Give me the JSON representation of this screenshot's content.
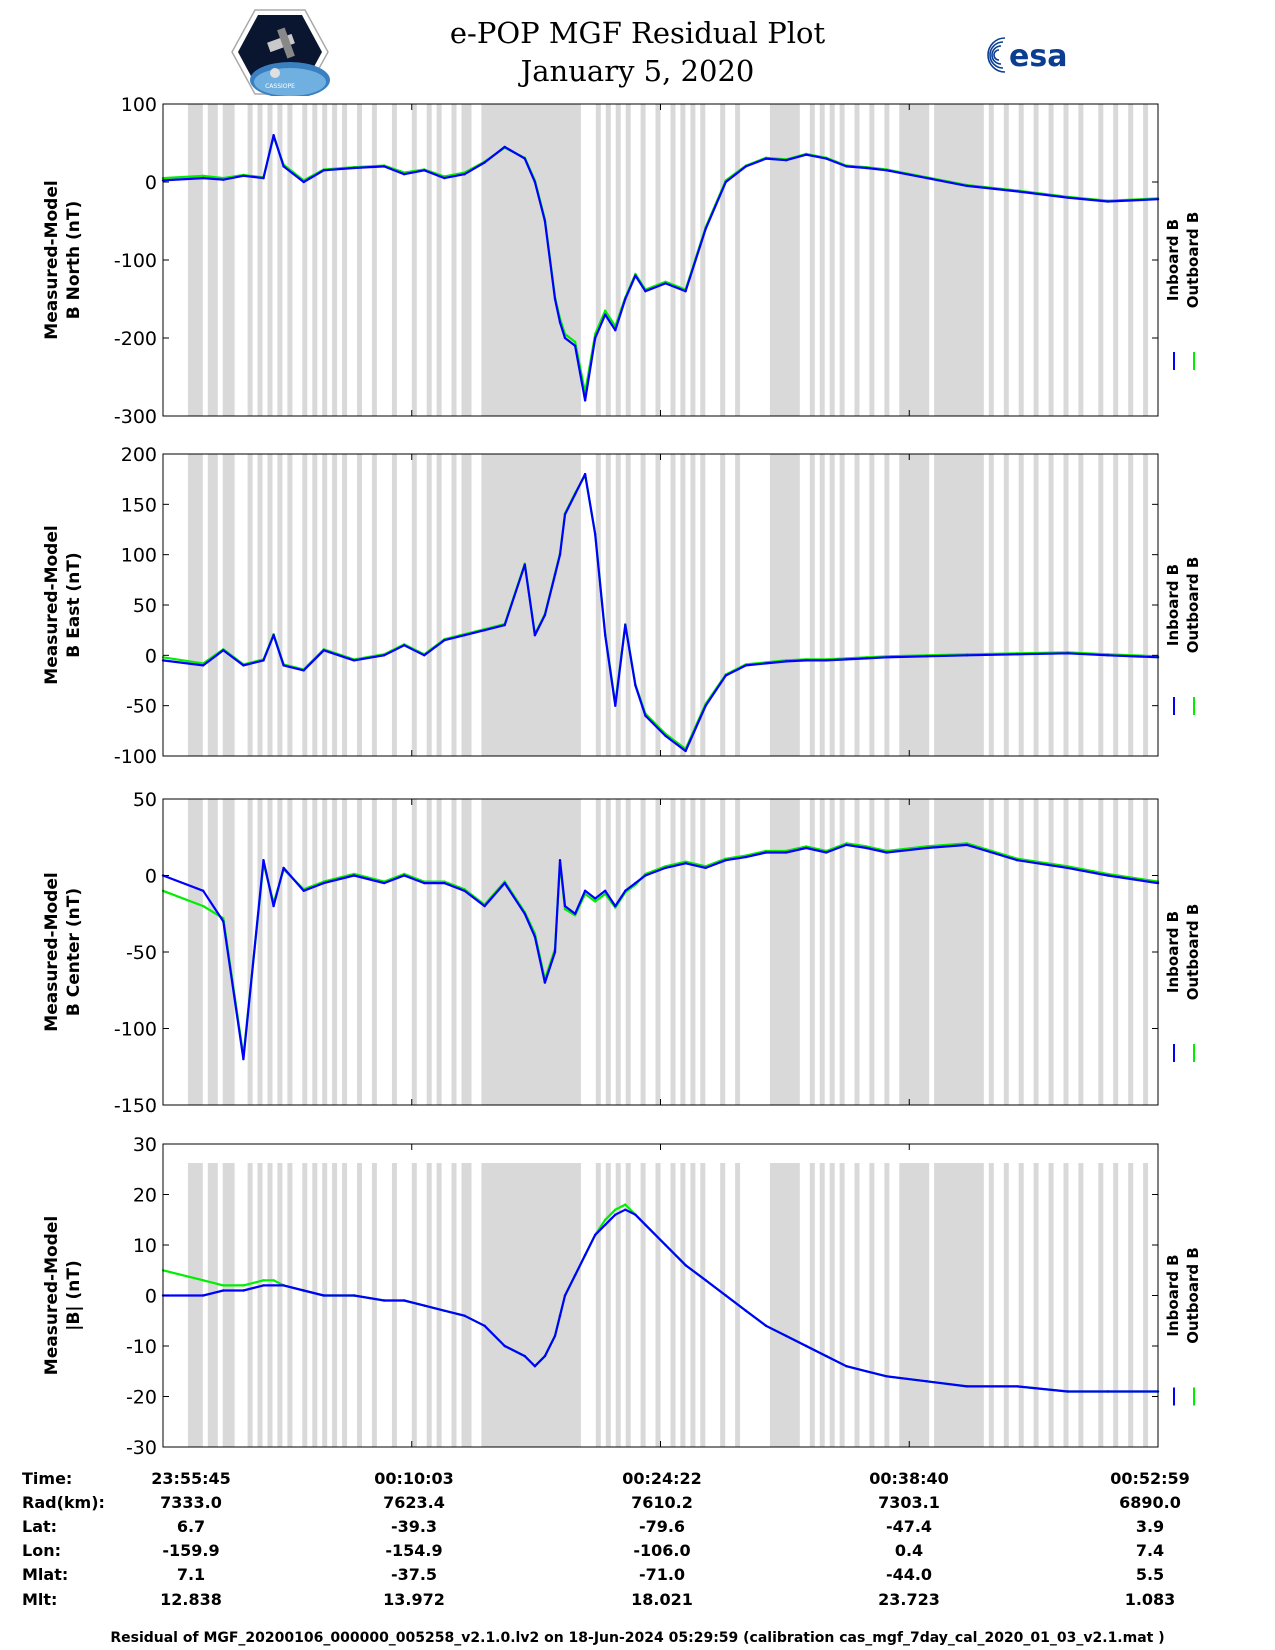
{
  "header": {
    "title_line1": "e-POP MGF Residual Plot",
    "title_line2": "January 5, 2020",
    "left_logo_text": "CASSIOPE",
    "right_logo_text": "esa"
  },
  "colors": {
    "inboard": "#0000ff",
    "outboard": "#00ee00",
    "shading": "#d9d9d9"
  },
  "chart_data": [
    {
      "type": "line",
      "ylabel": [
        "Measured-Model",
        "B North (nT)"
      ],
      "ylim": [
        -300,
        100
      ],
      "yticks": [
        100,
        0,
        -100,
        -200,
        -300
      ],
      "legend": [
        "Inboard B",
        "Outboard B"
      ],
      "x": [
        0,
        40,
        60,
        80,
        100,
        110,
        120,
        140,
        160,
        190,
        220,
        240,
        260,
        280,
        300,
        320,
        340,
        360,
        370,
        380,
        390,
        395,
        400,
        410,
        420,
        430,
        440,
        450,
        460,
        470,
        480,
        500,
        520,
        540,
        560,
        580,
        600,
        620,
        640,
        660,
        680,
        700,
        720,
        760,
        800,
        850,
        900,
        940,
        990
      ],
      "series": [
        {
          "name": "Inboard B",
          "values": [
            2,
            5,
            3,
            8,
            5,
            60,
            20,
            0,
            15,
            18,
            20,
            10,
            15,
            5,
            10,
            25,
            45,
            30,
            0,
            -50,
            -150,
            -180,
            -200,
            -210,
            -280,
            -200,
            -170,
            -190,
            -150,
            -120,
            -140,
            -130,
            -140,
            -60,
            0,
            20,
            30,
            28,
            35,
            30,
            20,
            18,
            15,
            5,
            -5,
            -12,
            -20,
            -25,
            -22
          ]
        },
        {
          "name": "Outboard B",
          "values": [
            5,
            8,
            5,
            9,
            6,
            58,
            22,
            2,
            16,
            19,
            21,
            12,
            16,
            7,
            12,
            26,
            44,
            31,
            2,
            -48,
            -148,
            -175,
            -195,
            -205,
            -270,
            -195,
            -165,
            -185,
            -148,
            -118,
            -138,
            -128,
            -138,
            -58,
            2,
            21,
            31,
            29,
            36,
            31,
            21,
            19,
            16,
            6,
            -4,
            -11,
            -19,
            -24,
            -21
          ]
        }
      ]
    },
    {
      "type": "line",
      "ylabel": [
        "Measured-Model",
        "B East (nT)"
      ],
      "ylim": [
        -100,
        200
      ],
      "yticks": [
        200,
        150,
        100,
        50,
        0,
        -50,
        -100
      ],
      "legend": [
        "Inboard B",
        "Outboard B"
      ],
      "x": [
        0,
        40,
        60,
        80,
        100,
        110,
        120,
        140,
        160,
        190,
        220,
        240,
        260,
        280,
        300,
        320,
        340,
        360,
        370,
        380,
        390,
        395,
        400,
        410,
        420,
        430,
        440,
        450,
        460,
        470,
        480,
        500,
        520,
        540,
        560,
        580,
        600,
        620,
        640,
        660,
        680,
        700,
        720,
        760,
        800,
        850,
        900,
        940,
        990
      ],
      "series": [
        {
          "name": "Inboard B",
          "values": [
            -5,
            -10,
            5,
            -10,
            -5,
            20,
            -10,
            -15,
            5,
            -5,
            0,
            10,
            0,
            15,
            20,
            25,
            30,
            90,
            20,
            40,
            80,
            100,
            140,
            160,
            180,
            120,
            20,
            -50,
            30,
            -30,
            -60,
            -80,
            -95,
            -50,
            -20,
            -10,
            -8,
            -6,
            -5,
            -5,
            -4,
            -3,
            -2,
            -1,
            0,
            1,
            2,
            0,
            -2
          ]
        },
        {
          "name": "Outboard B",
          "values": [
            -2,
            -8,
            6,
            -9,
            -4,
            21,
            -9,
            -14,
            6,
            -4,
            1,
            11,
            1,
            16,
            21,
            26,
            31,
            91,
            21,
            41,
            81,
            101,
            141,
            161,
            179,
            121,
            21,
            -48,
            31,
            -29,
            -58,
            -78,
            -93,
            -48,
            -19,
            -9,
            -7,
            -5,
            -4,
            -4,
            -3,
            -2,
            -1,
            0,
            1,
            2,
            3,
            1,
            -1
          ]
        }
      ]
    },
    {
      "type": "line",
      "ylabel": [
        "Measured-Model",
        "B Center (nT)"
      ],
      "ylim": [
        -150,
        50
      ],
      "yticks": [
        50,
        0,
        -50,
        -100,
        -150
      ],
      "legend": [
        "Inboard B",
        "Outboard B"
      ],
      "x": [
        0,
        40,
        60,
        80,
        100,
        110,
        120,
        140,
        160,
        190,
        220,
        240,
        260,
        280,
        300,
        320,
        340,
        360,
        370,
        380,
        390,
        395,
        400,
        410,
        420,
        430,
        440,
        450,
        460,
        470,
        480,
        500,
        520,
        540,
        560,
        580,
        600,
        620,
        640,
        660,
        680,
        700,
        720,
        760,
        800,
        850,
        900,
        940,
        990
      ],
      "series": [
        {
          "name": "Inboard B",
          "values": [
            0,
            -10,
            -30,
            -120,
            10,
            -20,
            5,
            -10,
            -5,
            0,
            -5,
            0,
            -5,
            -5,
            -10,
            -20,
            -5,
            -25,
            -40,
            -70,
            -50,
            10,
            -20,
            -25,
            -10,
            -15,
            -10,
            -20,
            -10,
            -5,
            0,
            5,
            8,
            5,
            10,
            12,
            15,
            15,
            18,
            15,
            20,
            18,
            15,
            18,
            20,
            10,
            5,
            0,
            -5
          ]
        },
        {
          "name": "Outboard B",
          "values": [
            -10,
            -20,
            -28,
            -118,
            8,
            -18,
            4,
            -9,
            -4,
            1,
            -4,
            1,
            -4,
            -4,
            -9,
            -19,
            -4,
            -24,
            -38,
            -68,
            -48,
            8,
            -22,
            -26,
            -12,
            -17,
            -12,
            -21,
            -11,
            -6,
            1,
            6,
            9,
            6,
            11,
            13,
            16,
            16,
            19,
            16,
            21,
            19,
            16,
            19,
            21,
            11,
            6,
            1,
            -4
          ]
        }
      ]
    },
    {
      "type": "line",
      "ylabel": [
        "Measured-Model",
        "|B| (nT)"
      ],
      "ylim": [
        -30,
        30
      ],
      "yticks": [
        30,
        20,
        10,
        0,
        -10,
        -20,
        -30
      ],
      "legend": [
        "Inboard B",
        "Outboard B"
      ],
      "x": [
        0,
        40,
        60,
        80,
        100,
        110,
        120,
        140,
        160,
        190,
        220,
        240,
        260,
        280,
        300,
        320,
        340,
        360,
        370,
        380,
        390,
        395,
        400,
        410,
        420,
        430,
        440,
        450,
        460,
        470,
        480,
        500,
        520,
        540,
        560,
        580,
        600,
        620,
        640,
        660,
        680,
        700,
        720,
        760,
        800,
        850,
        900,
        940,
        990
      ],
      "series": [
        {
          "name": "Inboard B",
          "values": [
            0,
            0,
            1,
            1,
            2,
            2,
            2,
            1,
            0,
            0,
            -1,
            -1,
            -2,
            -3,
            -4,
            -6,
            -10,
            -12,
            -14,
            -12,
            -8,
            -4,
            0,
            4,
            8,
            12,
            14,
            16,
            17,
            16,
            14,
            10,
            6,
            3,
            0,
            -3,
            -6,
            -8,
            -10,
            -12,
            -14,
            -15,
            -16,
            -17,
            -18,
            -18,
            -19,
            -19,
            -19
          ]
        },
        {
          "name": "Outboard B",
          "values": [
            5,
            3,
            2,
            2,
            3,
            3,
            2,
            1,
            0,
            0,
            -1,
            -1,
            -2,
            -3,
            -4,
            -6,
            -10,
            -12,
            -14,
            -12,
            -8,
            -4,
            0,
            4,
            8,
            12,
            15,
            17,
            18,
            16,
            14,
            10,
            6,
            3,
            0,
            -3,
            -6,
            -8,
            -10,
            -12,
            -14,
            -15,
            -16,
            -17,
            -18,
            -18,
            -19,
            -19,
            -19
          ]
        }
      ]
    }
  ],
  "orbit_table": {
    "row_labels": [
      "Time:",
      "Rad(km):",
      "Lat:",
      "Lon:",
      "Mlat:",
      "Mlt:"
    ],
    "columns": [
      [
        "23:55:45",
        "7333.0",
        "6.7",
        "-159.9",
        "7.1",
        "12.838"
      ],
      [
        "00:10:03",
        "7623.4",
        "-39.3",
        "-154.9",
        "-37.5",
        "13.972"
      ],
      [
        "00:24:22",
        "7610.2",
        "-79.6",
        "-106.0",
        "-71.0",
        "18.021"
      ],
      [
        "00:38:40",
        "7303.1",
        "-47.4",
        "0.4",
        "-44.0",
        "23.723"
      ],
      [
        "00:52:59",
        "6890.0",
        "3.9",
        "7.4",
        "5.5",
        "1.083"
      ]
    ]
  },
  "footer": "Residual of MGF_20200106_000000_005258_v2.1.0.lv2 on 18-Jun-2024 05:29:59 (calibration cas_mgf_7day_cal_2020_01_03_v2.1.mat )"
}
